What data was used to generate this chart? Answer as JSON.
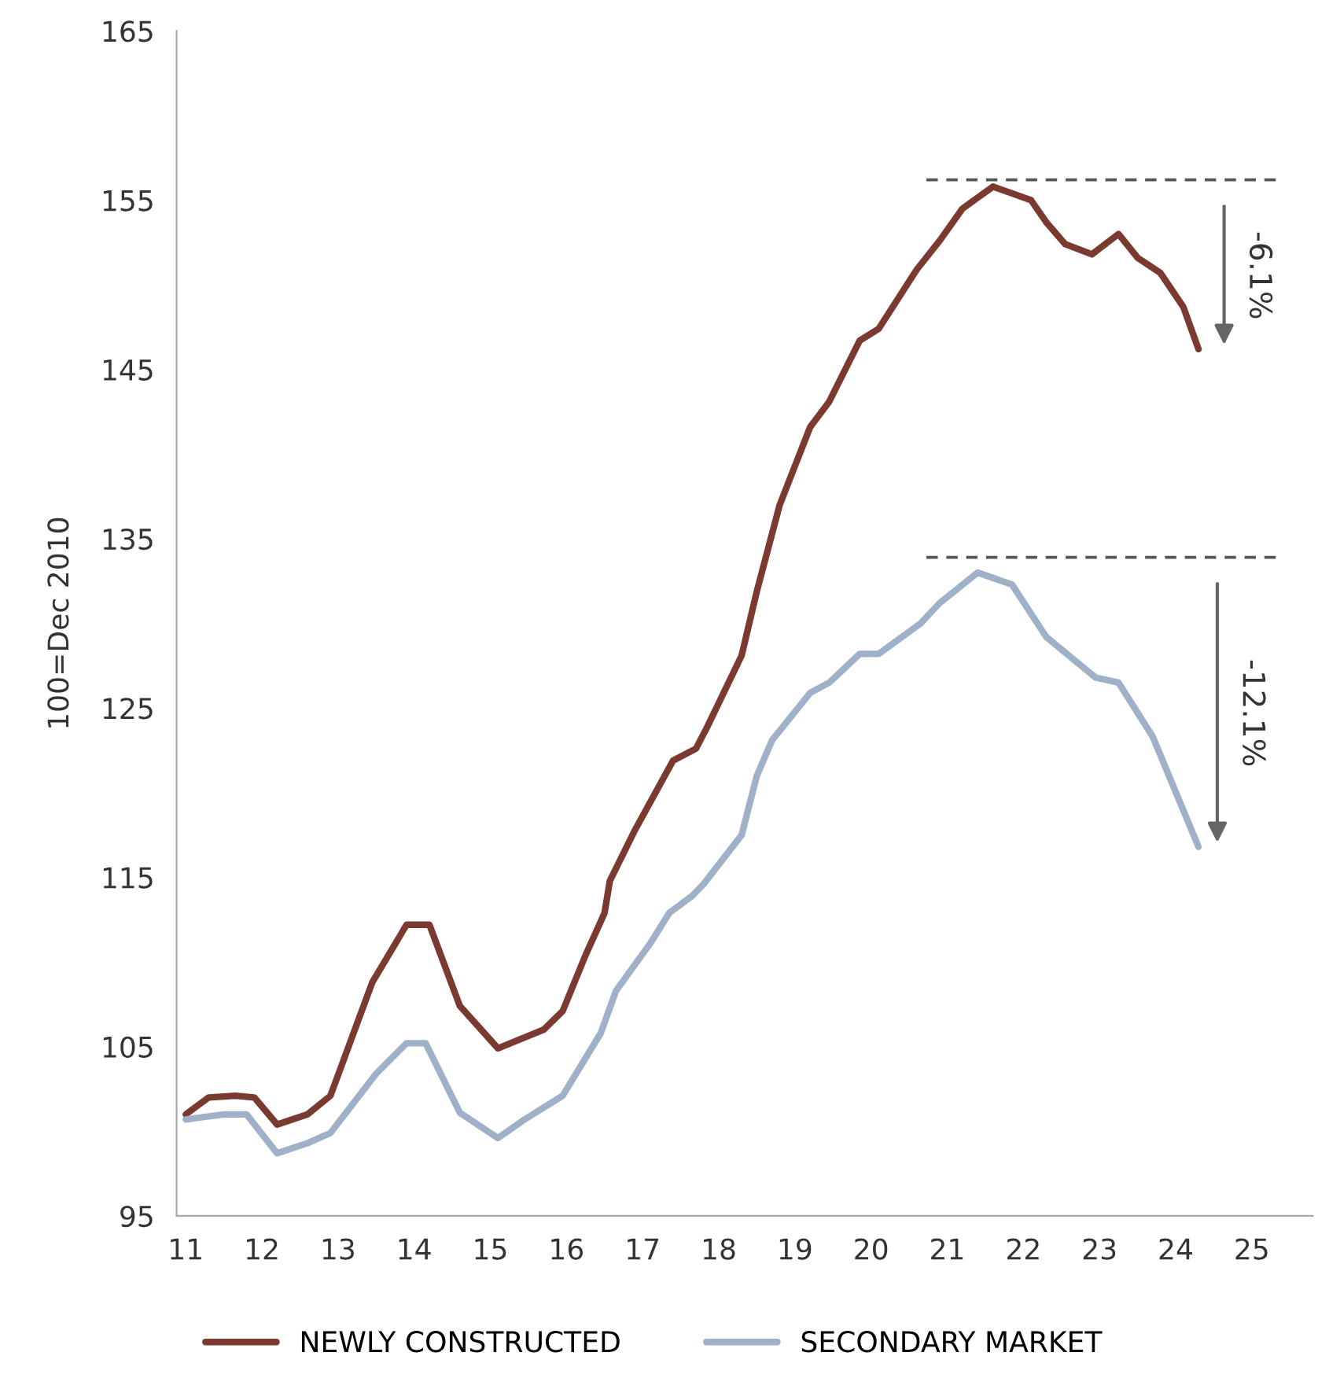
{
  "chart_data": {
    "type": "line",
    "ylabel": "100=Dec 2010",
    "xlim": [
      10.88,
      25.8
    ],
    "xticks": [
      11,
      12,
      13,
      14,
      15,
      16,
      17,
      18,
      19,
      20,
      21,
      22,
      23,
      24,
      25
    ],
    "ylim": [
      95,
      165
    ],
    "yticks": [
      95,
      105,
      115,
      125,
      135,
      145,
      155,
      165
    ],
    "grid": false,
    "legend": "bottom",
    "marker": "none",
    "line_style": "solid",
    "series": [
      {
        "name": "NEWLY CONSTRUCTED",
        "color": "#7b3a30",
        "x": [
          11.0,
          11.3,
          11.65,
          11.9,
          12.2,
          12.6,
          12.9,
          13.45,
          13.9,
          14.2,
          14.6,
          15.1,
          15.7,
          15.95,
          16.25,
          16.5,
          16.57,
          16.9,
          17.4,
          17.7,
          17.85,
          18.3,
          18.5,
          18.8,
          19.2,
          19.45,
          19.85,
          20.1,
          20.6,
          20.9,
          21.2,
          21.6,
          22.1,
          22.3,
          22.55,
          22.9,
          23.25,
          23.5,
          23.8,
          24.1,
          24.3
        ],
        "values": [
          101.0,
          102.0,
          102.1,
          102.0,
          100.4,
          101.0,
          102.1,
          108.8,
          112.2,
          112.2,
          107.4,
          104.9,
          106.0,
          107.1,
          110.4,
          112.9,
          114.8,
          117.8,
          121.9,
          122.6,
          123.9,
          128.1,
          131.9,
          137.0,
          141.6,
          143.1,
          146.7,
          147.4,
          150.9,
          152.6,
          154.5,
          155.8,
          155.0,
          153.7,
          152.4,
          151.8,
          153.0,
          151.6,
          150.7,
          148.7,
          146.2
        ]
      },
      {
        "name": "SECONDARY MARKET",
        "color": "#9fb1c9",
        "x": [
          11.0,
          11.5,
          11.8,
          12.2,
          12.6,
          12.9,
          13.5,
          13.9,
          14.15,
          14.6,
          15.1,
          15.45,
          15.95,
          16.45,
          16.65,
          17.1,
          17.35,
          17.65,
          17.8,
          18.3,
          18.5,
          18.7,
          19.2,
          19.45,
          19.85,
          20.1,
          20.65,
          20.9,
          21.4,
          21.85,
          22.3,
          22.65,
          22.95,
          23.25,
          23.7,
          24.3
        ],
        "values": [
          100.7,
          101.0,
          101.0,
          98.7,
          99.3,
          99.9,
          103.4,
          105.2,
          105.2,
          101.1,
          99.6,
          100.7,
          102.1,
          105.8,
          108.3,
          111.1,
          112.9,
          113.9,
          114.6,
          117.5,
          121.0,
          123.1,
          125.9,
          126.5,
          128.2,
          128.2,
          130.0,
          131.2,
          133.0,
          132.3,
          129.2,
          127.9,
          126.8,
          126.5,
          123.3,
          116.8
        ]
      }
    ],
    "ref_lines": [
      {
        "axis": "y",
        "value": 156.2,
        "color": "#555555",
        "line_style": "dashed"
      },
      {
        "axis": "y",
        "value": 133.9,
        "color": "#555555",
        "line_style": "dashed"
      }
    ],
    "annotations": [
      "-6.1%",
      "-12.1%"
    ]
  }
}
